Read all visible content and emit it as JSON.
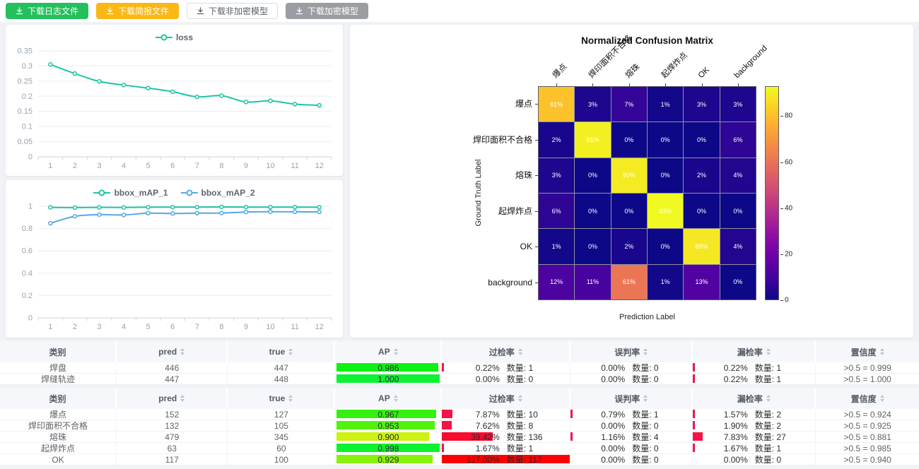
{
  "toolbar": {
    "buttons": [
      {
        "label": "下载日志文件",
        "variant": "green"
      },
      {
        "label": "下载简报文件",
        "variant": "orange"
      },
      {
        "label": "下载非加密模型",
        "variant": "plain"
      },
      {
        "label": "下载加密模型",
        "variant": "gray"
      }
    ]
  },
  "colors": {
    "teal": "#20c4a5",
    "blue": "#57a7e8",
    "green_button": "#25c05d",
    "orange_button": "#fbb716",
    "gray_button": "#9a9da2",
    "ap_bar_green": "#00e05c",
    "rate_bar_red": "#f5134b"
  },
  "chart_data": [
    {
      "type": "line",
      "title": "",
      "x": [
        1,
        2,
        3,
        4,
        5,
        6,
        7,
        8,
        9,
        10,
        11,
        12
      ],
      "series": [
        {
          "name": "loss",
          "color": "#20c4a5",
          "values": [
            0.305,
            0.275,
            0.249,
            0.237,
            0.227,
            0.215,
            0.198,
            0.202,
            0.181,
            0.185,
            0.174,
            0.17
          ]
        }
      ],
      "ylim": [
        0,
        0.35
      ],
      "ystep": 0.05,
      "grid": true,
      "legend_position": "top"
    },
    {
      "type": "line",
      "title": "",
      "x": [
        1,
        2,
        3,
        4,
        5,
        6,
        7,
        8,
        9,
        10,
        11,
        12
      ],
      "series": [
        {
          "name": "bbox_mAP_1",
          "color": "#20c4a5",
          "values": [
            0.99,
            0.988,
            0.99,
            0.989,
            0.992,
            0.992,
            0.992,
            0.994,
            0.992,
            0.992,
            0.992,
            0.991
          ]
        },
        {
          "name": "bbox_mAP_2",
          "color": "#57a7e8",
          "values": [
            0.848,
            0.91,
            0.925,
            0.922,
            0.938,
            0.935,
            0.938,
            0.939,
            0.948,
            0.951,
            0.95,
            0.949
          ]
        }
      ],
      "ylim": [
        0,
        1
      ],
      "ystep": 0.2,
      "grid": true,
      "legend_position": "top"
    },
    {
      "type": "heatmap",
      "title": "Normalized Confusion Matrix",
      "xlabel": "Prediction Label",
      "ylabel": "Ground Truth Label",
      "labels": [
        "爆点",
        "焊印面积不合格",
        "熔珠",
        "起焊炸点",
        "OK",
        "background"
      ],
      "values_percent": [
        [
          81,
          3,
          7,
          1,
          3,
          3
        ],
        [
          2,
          91,
          0,
          0,
          0,
          6
        ],
        [
          3,
          0,
          90,
          0,
          2,
          4
        ],
        [
          6,
          0,
          0,
          93,
          0,
          0
        ],
        [
          1,
          0,
          2,
          0,
          89,
          4
        ],
        [
          12,
          11,
          61,
          1,
          13,
          0
        ]
      ],
      "vmax": 93,
      "colorbar_ticks": [
        0,
        20,
        40,
        60,
        80
      ],
      "colormap": "plasma"
    }
  ],
  "tables": {
    "count_label": "数量",
    "headers": [
      {
        "label": "类别",
        "sortable": false
      },
      {
        "label": "pred",
        "sortable": true
      },
      {
        "label": "true",
        "sortable": true
      },
      {
        "label": "AP",
        "sortable": true
      },
      {
        "label": "过检率",
        "sortable": true
      },
      {
        "label": "误判率",
        "sortable": true
      },
      {
        "label": "漏检率",
        "sortable": true
      },
      {
        "label": "置信度",
        "sortable": true
      }
    ],
    "groups": [
      {
        "rows": [
          {
            "class": "焊盘",
            "pred": 446,
            "true": 447,
            "ap": 0.986,
            "over": {
              "pct": 0.22,
              "count": 1
            },
            "mis": {
              "pct": 0.0,
              "count": 0
            },
            "miss": {
              "pct": 0.22,
              "count": 1
            },
            "conf": ">0.5 = 0.999"
          },
          {
            "class": "焊缝轨迹",
            "pred": 447,
            "true": 448,
            "ap": 1.0,
            "over": {
              "pct": 0.0,
              "count": 0
            },
            "mis": {
              "pct": 0.0,
              "count": 0
            },
            "miss": {
              "pct": 0.22,
              "count": 1
            },
            "conf": ">0.5 = 1.000"
          }
        ]
      },
      {
        "rows": [
          {
            "class": "爆点",
            "pred": 152,
            "true": 127,
            "ap": 0.967,
            "over": {
              "pct": 7.87,
              "count": 10
            },
            "mis": {
              "pct": 0.79,
              "count": 1
            },
            "miss": {
              "pct": 1.57,
              "count": 2
            },
            "conf": ">0.5 = 0.924"
          },
          {
            "class": "焊印面积不合格",
            "pred": 132,
            "true": 105,
            "ap": 0.953,
            "over": {
              "pct": 7.62,
              "count": 8
            },
            "mis": {
              "pct": 0.0,
              "count": 0
            },
            "miss": {
              "pct": 1.9,
              "count": 2
            },
            "conf": ">0.5 = 0.925"
          },
          {
            "class": "熔珠",
            "pred": 479,
            "true": 345,
            "ap": 0.9,
            "over": {
              "pct": 39.42,
              "count": 136
            },
            "mis": {
              "pct": 1.16,
              "count": 4
            },
            "miss": {
              "pct": 7.83,
              "count": 27
            },
            "conf": ">0.5 = 0.881"
          },
          {
            "class": "起焊炸点",
            "pred": 63,
            "true": 60,
            "ap": 0.998,
            "over": {
              "pct": 1.67,
              "count": 1
            },
            "mis": {
              "pct": 0.0,
              "count": 0
            },
            "miss": {
              "pct": 1.67,
              "count": 1
            },
            "conf": ">0.5 = 0.985"
          },
          {
            "class": "OK",
            "pred": 117,
            "true": 100,
            "ap": 0.929,
            "over": {
              "pct": 117.0,
              "count": 117
            },
            "mis": {
              "pct": 0.0,
              "count": 0
            },
            "miss": {
              "pct": 0.0,
              "count": 0
            },
            "conf": ">0.5 = 0.940"
          }
        ]
      }
    ]
  }
}
